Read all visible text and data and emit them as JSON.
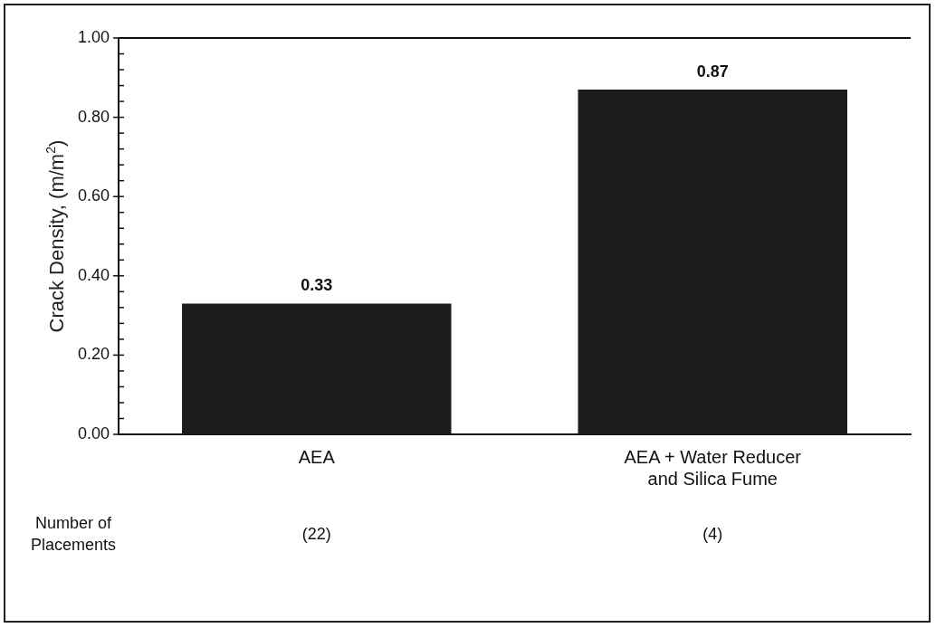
{
  "chart_data": {
    "type": "bar",
    "ylabel": "Crack Density, (m/m$^{2}$)",
    "categories": [
      "AEA",
      "AEA + Water Reducer\nand Silica Fume"
    ],
    "values": [
      0.33,
      0.87
    ],
    "color": "#1c1c1c",
    "data_labels": true,
    "ylim": [
      0,
      1
    ],
    "yticks": [
      {
        "value": 0,
        "label": "0.00"
      },
      {
        "value": 0.04,
        "label": null
      },
      {
        "value": 0.08,
        "label": null
      },
      {
        "value": 0.12,
        "label": null
      },
      {
        "value": 0.16,
        "label": null
      },
      {
        "value": 0.2,
        "label": "0.20"
      },
      {
        "value": 0.24,
        "label": null
      },
      {
        "value": 0.28,
        "label": null
      },
      {
        "value": 0.32,
        "label": null
      },
      {
        "value": 0.36,
        "label": null
      },
      {
        "value": 0.4,
        "label": "0.40"
      },
      {
        "value": 0.44,
        "label": null
      },
      {
        "value": 0.48,
        "label": null
      },
      {
        "value": 0.52,
        "label": null
      },
      {
        "value": 0.56,
        "label": null
      },
      {
        "value": 0.6,
        "label": "0.60"
      },
      {
        "value": 0.64,
        "label": null
      },
      {
        "value": 0.68,
        "label": null
      },
      {
        "value": 0.72,
        "label": null
      },
      {
        "value": 0.76,
        "label": null
      },
      {
        "value": 0.8,
        "label": "0.80"
      },
      {
        "value": 0.84,
        "label": null
      },
      {
        "value": 0.88,
        "label": null
      },
      {
        "value": 0.92,
        "label": null
      },
      {
        "value": 0.96,
        "label": null
      },
      {
        "value": 1,
        "label": "1.00"
      }
    ],
    "grid": false,
    "legend": false,
    "annotations": [
      "Number of\nPlacements",
      "(22)",
      "(4)"
    ]
  }
}
